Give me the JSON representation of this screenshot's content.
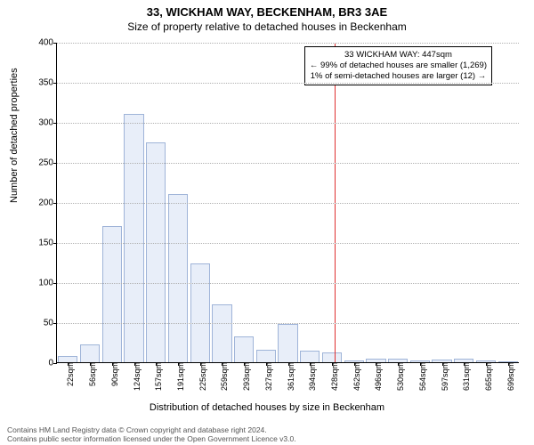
{
  "titles": {
    "super": "33, WICKHAM WAY, BECKENHAM, BR3 3AE",
    "sub": "Size of property relative to detached houses in Beckenham"
  },
  "chart": {
    "type": "histogram",
    "ylabel": "Number of detached properties",
    "xlabel": "Distribution of detached houses by size in Beckenham",
    "ylim": [
      0,
      400
    ],
    "ytick_step": 50,
    "grid_color": "#b0b0b0",
    "background_color": "#ffffff",
    "bar_fill": "#e8eef9",
    "bar_stroke": "#9fb4d8",
    "categories": [
      "22sqm",
      "56sqm",
      "90sqm",
      "124sqm",
      "157sqm",
      "191sqm",
      "225sqm",
      "259sqm",
      "293sqm",
      "327sqm",
      "361sqm",
      "394sqm",
      "428sqm",
      "462sqm",
      "496sqm",
      "530sqm",
      "564sqm",
      "597sqm",
      "631sqm",
      "665sqm",
      "699sqm"
    ],
    "values": [
      8,
      22,
      170,
      310,
      275,
      210,
      123,
      72,
      32,
      16,
      48,
      14,
      12,
      2,
      4,
      4,
      2,
      3,
      4,
      2,
      1
    ]
  },
  "marker": {
    "color": "#e03030",
    "category_index": 12.6
  },
  "annotation": {
    "line1": "33 WICKHAM WAY: 447sqm",
    "line2": "← 99% of detached houses are smaller (1,269)",
    "line3": "1% of semi-detached houses are larger (12) →",
    "border_color": "#000000",
    "bg_color": "#ffffff",
    "fontsize": 9.5
  },
  "attribution": {
    "line1": "Contains HM Land Registry data © Crown copyright and database right 2024.",
    "line2": "Contains public sector information licensed under the Open Government Licence v3.0."
  }
}
